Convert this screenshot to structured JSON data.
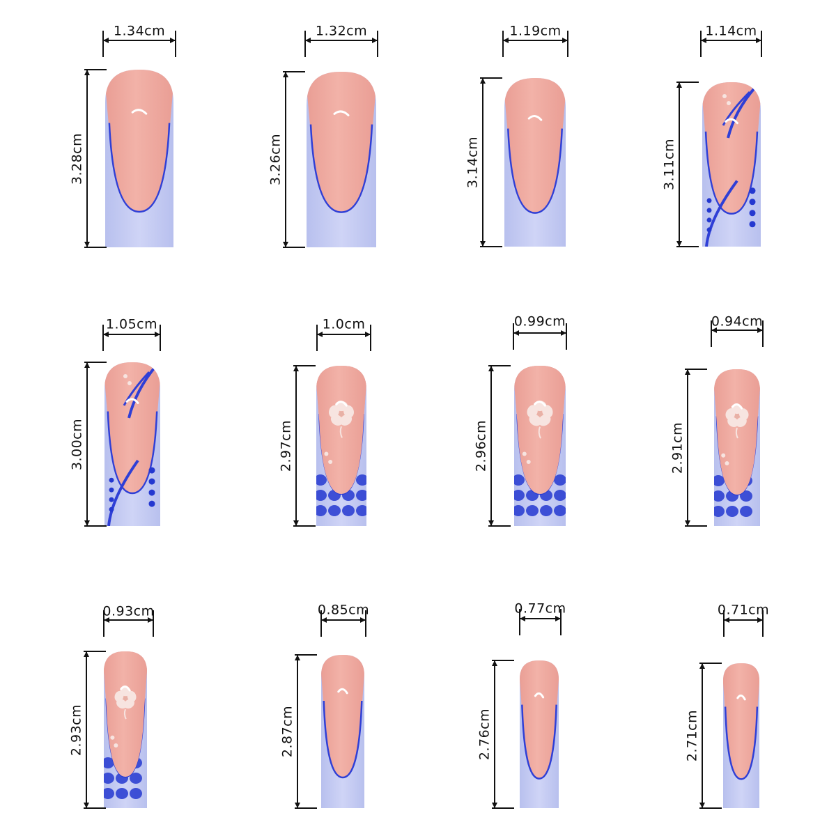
{
  "colors": {
    "nail_pink": "#f2b2a8",
    "nail_pink_dark": "#e99d94",
    "tip_lavender": "#b8c0ee",
    "tip_lavender_light": "#cfd4f6",
    "line_blue": "#2f3fd6",
    "dot_blue": "#2438d0",
    "flower_white": "#f7e4e0",
    "dimension_line": "#111111"
  },
  "nails": [
    {
      "width_label": "1.34cm",
      "length_label": "3.28cm",
      "design": "plain-french",
      "width_cm": 1.34,
      "length_cm": 3.28
    },
    {
      "width_label": "1.32cm",
      "length_label": "3.26cm",
      "design": "plain-french",
      "width_cm": 1.32,
      "length_cm": 3.26
    },
    {
      "width_label": "1.19cm",
      "length_label": "3.14cm",
      "design": "plain-french",
      "width_cm": 1.19,
      "length_cm": 3.14
    },
    {
      "width_label": "1.14cm",
      "length_label": "3.11cm",
      "design": "swoosh-dots",
      "width_cm": 1.14,
      "length_cm": 3.11
    },
    {
      "width_label": "1.05cm",
      "length_label": "3.00cm",
      "design": "swoosh-dots",
      "width_cm": 1.05,
      "length_cm": 3.0
    },
    {
      "width_label": "1.0cm",
      "length_label": "2.97cm",
      "design": "flower-tip",
      "width_cm": 1.0,
      "length_cm": 2.97
    },
    {
      "width_label": "0.99cm",
      "length_label": "2.96cm",
      "design": "flower-tip",
      "width_cm": 0.99,
      "length_cm": 2.96
    },
    {
      "width_label": "0.94cm",
      "length_label": "2.91cm",
      "design": "flower-tip",
      "width_cm": 0.94,
      "length_cm": 2.91
    },
    {
      "width_label": "0.93cm",
      "length_label": "2.93cm",
      "design": "flower-tip",
      "width_cm": 0.93,
      "length_cm": 2.93
    },
    {
      "width_label": "0.85cm",
      "length_label": "2.87cm",
      "design": "plain-french",
      "width_cm": 0.85,
      "length_cm": 2.87
    },
    {
      "width_label": "0.77cm",
      "length_label": "2.76cm",
      "design": "plain-french",
      "width_cm": 0.77,
      "length_cm": 2.76
    },
    {
      "width_label": "0.71cm",
      "length_label": "2.71cm",
      "design": "plain-french",
      "width_cm": 0.71,
      "length_cm": 2.71
    }
  ]
}
